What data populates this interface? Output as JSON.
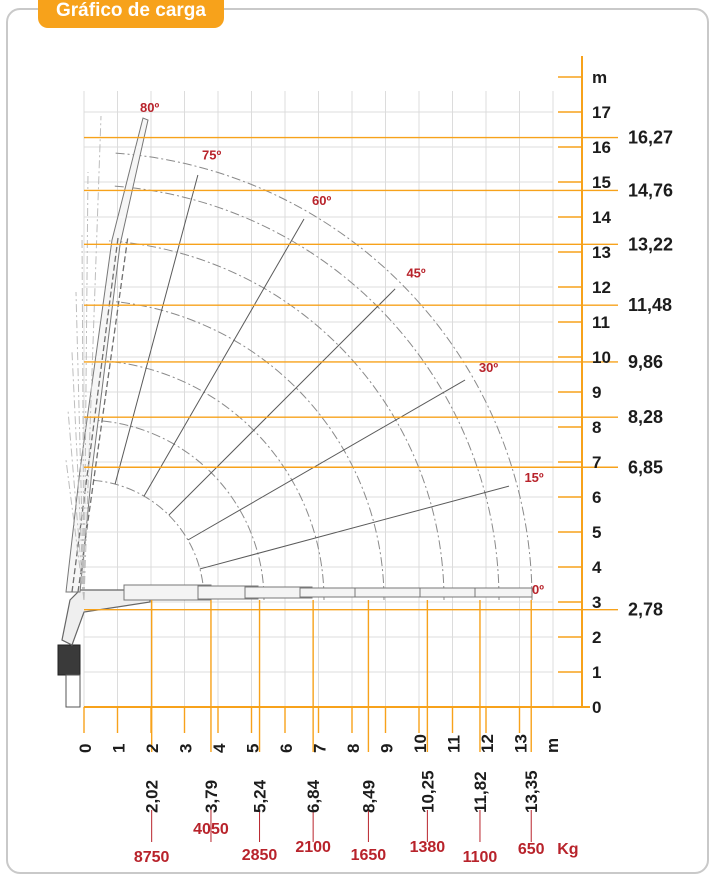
{
  "title": "Gráfico de carga",
  "axis_unit_label": "m",
  "load_unit_label": "Kg",
  "colors": {
    "accent": "#f7a21b",
    "angle_label": "#b8232b",
    "grid": "#dcdcdc",
    "text": "#1c1c1c",
    "crane": "#6f6f6f",
    "frame": "#c9c9c9"
  },
  "chart_data": {
    "type": "load-chart",
    "x_ticks": [
      0,
      1,
      2,
      3,
      4,
      5,
      6,
      7,
      8,
      9,
      10,
      11,
      12,
      13
    ],
    "y_ticks": [
      0,
      1,
      2,
      3,
      4,
      5,
      6,
      7,
      8,
      9,
      10,
      11,
      12,
      13,
      14,
      15,
      16,
      17
    ],
    "x_range": [
      0,
      14
    ],
    "y_range": [
      0,
      18
    ],
    "angles": [
      {
        "label": "0º",
        "deg": 0
      },
      {
        "label": "15º",
        "deg": 15
      },
      {
        "label": "30º",
        "deg": 30
      },
      {
        "label": "45º",
        "deg": 45
      },
      {
        "label": "60º",
        "deg": 60
      },
      {
        "label": "75º",
        "deg": 75
      },
      {
        "label": "80º",
        "deg": 80
      }
    ],
    "reach_points": [
      {
        "reach": "2,02",
        "x": 2.02,
        "load": "8750"
      },
      {
        "reach": "3,79",
        "x": 3.79,
        "load": "4050"
      },
      {
        "reach": "5,24",
        "x": 5.24,
        "load": "2850"
      },
      {
        "reach": "6,84",
        "x": 6.84,
        "load": "2100"
      },
      {
        "reach": "8,49",
        "x": 8.49,
        "load": "1650"
      },
      {
        "reach": "10,25",
        "x": 10.25,
        "load": "1380"
      },
      {
        "reach": "11,82",
        "x": 11.82,
        "load": "1100"
      },
      {
        "reach": "13,35",
        "x": 13.35,
        "load": "650"
      }
    ],
    "height_points": [
      {
        "label": "16,27",
        "y": 16.27
      },
      {
        "label": "14,76",
        "y": 14.76
      },
      {
        "label": "13,22",
        "y": 13.22
      },
      {
        "label": "11,48",
        "y": 11.48
      },
      {
        "label": "9,86",
        "y": 9.86
      },
      {
        "label": "8,28",
        "y": 8.28
      },
      {
        "label": "6,85",
        "y": 6.85
      },
      {
        "label": "2,78",
        "y": 2.78
      }
    ]
  }
}
